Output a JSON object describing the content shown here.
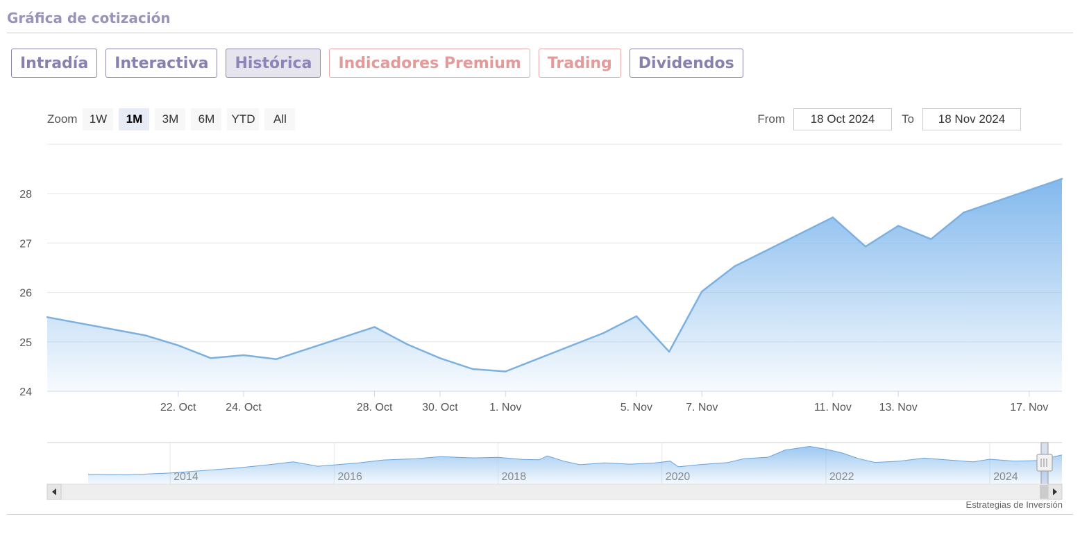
{
  "header": {
    "title": "Gráfica de cotización"
  },
  "tabs": [
    {
      "label": "Intradía",
      "active": false,
      "premium": false
    },
    {
      "label": "Interactiva",
      "active": false,
      "premium": false
    },
    {
      "label": "Histórica",
      "active": true,
      "premium": false
    },
    {
      "label": "Indicadores Premium",
      "active": false,
      "premium": true
    },
    {
      "label": "Trading",
      "active": false,
      "premium": true
    },
    {
      "label": "Dividendos",
      "active": false,
      "premium": false
    }
  ],
  "range_selector": {
    "zoom_label": "Zoom",
    "buttons": [
      "1W",
      "1M",
      "3M",
      "6M",
      "YTD",
      "All"
    ],
    "selected": "1M",
    "from_label": "From",
    "from_value": "18 Oct 2024",
    "to_label": "To",
    "to_value": "18 Nov 2024"
  },
  "colors": {
    "line": "#7cb0e0",
    "area_top": "#7cb5ec",
    "tab_text": "#8a80b0",
    "premium_text": "#e39a9a"
  },
  "chart_data": {
    "type": "area",
    "series": [
      {
        "values": [
          {
            "date": "2024-10-18",
            "y": 25.5
          },
          {
            "date": "2024-10-21",
            "y": 25.13
          },
          {
            "date": "2024-10-22",
            "y": 24.93
          },
          {
            "date": "2024-10-23",
            "y": 24.67
          },
          {
            "date": "2024-10-24",
            "y": 24.73
          },
          {
            "date": "2024-10-25",
            "y": 24.65
          },
          {
            "date": "2024-10-28",
            "y": 25.3
          },
          {
            "date": "2024-10-29",
            "y": 24.95
          },
          {
            "date": "2024-10-30",
            "y": 24.67
          },
          {
            "date": "2024-10-31",
            "y": 24.45
          },
          {
            "date": "2024-11-01",
            "y": 24.4
          },
          {
            "date": "2024-11-04",
            "y": 25.18
          },
          {
            "date": "2024-11-05",
            "y": 25.52
          },
          {
            "date": "2024-11-06",
            "y": 24.8
          },
          {
            "date": "2024-11-07",
            "y": 26.02
          },
          {
            "date": "2024-11-08",
            "y": 26.53
          },
          {
            "date": "2024-11-11",
            "y": 27.52
          },
          {
            "date": "2024-11-12",
            "y": 26.93
          },
          {
            "date": "2024-11-13",
            "y": 27.35
          },
          {
            "date": "2024-11-14",
            "y": 27.08
          },
          {
            "date": "2024-11-15",
            "y": 27.62
          },
          {
            "date": "2024-11-18",
            "y": 28.3
          }
        ]
      }
    ],
    "y_ticks": [
      24,
      25,
      26,
      27,
      28
    ],
    "x_ticks": [
      "22. Oct",
      "24. Oct",
      "28. Oct",
      "30. Oct",
      "1. Nov",
      "5. Nov",
      "7. Nov",
      "11. Nov",
      "13. Nov",
      "17. Nov"
    ],
    "ylim": [
      24,
      29
    ],
    "grid": true,
    "legend": "none",
    "navigator": {
      "year_labels": [
        "2014",
        "2016",
        "2018",
        "2020",
        "2022",
        "2024"
      ],
      "series": [
        {
          "year": 2013.0,
          "y": 15.2
        },
        {
          "year": 2013.5,
          "y": 15.0
        },
        {
          "year": 2014.0,
          "y": 15.9
        },
        {
          "year": 2014.4,
          "y": 17.2
        },
        {
          "year": 2014.8,
          "y": 18.5
        },
        {
          "year": 2015.1,
          "y": 19.8
        },
        {
          "year": 2015.5,
          "y": 21.8
        },
        {
          "year": 2015.8,
          "y": 19.5
        },
        {
          "year": 2016.0,
          "y": 20.2
        },
        {
          "year": 2016.3,
          "y": 21.3
        },
        {
          "year": 2016.6,
          "y": 22.8
        },
        {
          "year": 2017.0,
          "y": 23.5
        },
        {
          "year": 2017.3,
          "y": 24.6
        },
        {
          "year": 2017.7,
          "y": 23.9
        },
        {
          "year": 2018.0,
          "y": 24.2
        },
        {
          "year": 2018.3,
          "y": 23.1
        },
        {
          "year": 2018.5,
          "y": 22.9
        },
        {
          "year": 2018.6,
          "y": 25.0
        },
        {
          "year": 2018.8,
          "y": 22.2
        },
        {
          "year": 2019.0,
          "y": 20.3
        },
        {
          "year": 2019.3,
          "y": 21.3
        },
        {
          "year": 2019.6,
          "y": 20.6
        },
        {
          "year": 2019.9,
          "y": 21.2
        },
        {
          "year": 2020.1,
          "y": 22.2
        },
        {
          "year": 2020.2,
          "y": 19.2
        },
        {
          "year": 2020.5,
          "y": 20.5
        },
        {
          "year": 2020.8,
          "y": 21.4
        },
        {
          "year": 2021.0,
          "y": 23.5
        },
        {
          "year": 2021.3,
          "y": 24.3
        },
        {
          "year": 2021.5,
          "y": 28.0
        },
        {
          "year": 2021.8,
          "y": 30.0
        },
        {
          "year": 2022.0,
          "y": 28.5
        },
        {
          "year": 2022.2,
          "y": 26.5
        },
        {
          "year": 2022.4,
          "y": 23.5
        },
        {
          "year": 2022.6,
          "y": 21.5
        },
        {
          "year": 2022.9,
          "y": 22.2
        },
        {
          "year": 2023.2,
          "y": 23.8
        },
        {
          "year": 2023.5,
          "y": 22.8
        },
        {
          "year": 2023.8,
          "y": 21.8
        },
        {
          "year": 2024.0,
          "y": 23.2
        },
        {
          "year": 2024.3,
          "y": 22.2
        },
        {
          "year": 2024.6,
          "y": 22.5
        },
        {
          "year": 2024.88,
          "y": 25.5
        }
      ]
    }
  },
  "footer": {
    "credits": "Estrategias de Inversión"
  }
}
